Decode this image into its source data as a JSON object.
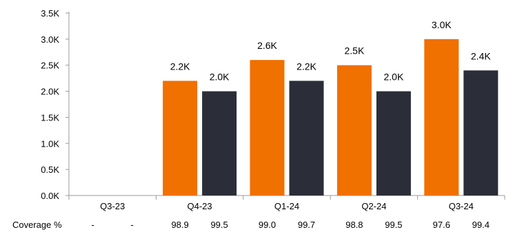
{
  "chart_data": {
    "type": "bar",
    "categories": [
      "Q3-23",
      "Q4-23",
      "Q1-24",
      "Q2-24",
      "Q3-24"
    ],
    "series": [
      {
        "color": "#f07000",
        "values": [
          null,
          2.2,
          2.6,
          2.5,
          3.0
        ],
        "labels": [
          "",
          "2.2K",
          "2.6K",
          "2.5K",
          "3.0K"
        ]
      },
      {
        "color": "#2b2e38",
        "values": [
          null,
          2.0,
          2.2,
          2.0,
          2.4
        ],
        "labels": [
          "",
          "2.0K",
          "2.2K",
          "2.0K",
          "2.4K"
        ]
      }
    ],
    "ylim": [
      0,
      3.5
    ],
    "yticks": [
      "0.0K",
      "0.5K",
      "1.0K",
      "1.5K",
      "2.0K",
      "2.5K",
      "3.0K",
      "3.5K"
    ],
    "grid": false,
    "coverage": {
      "label": "Coverage %",
      "values": [
        [
          "-",
          "-"
        ],
        [
          "98.9",
          "99.5"
        ],
        [
          "99.0",
          "99.7"
        ],
        [
          "98.8",
          "99.5"
        ],
        [
          "97.6",
          "99.4"
        ]
      ]
    }
  }
}
